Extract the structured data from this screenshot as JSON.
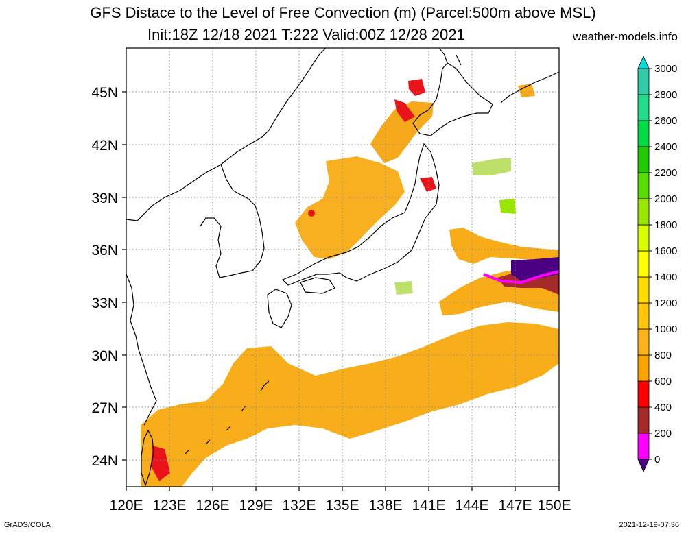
{
  "header": {
    "title": "GFS Distace to the Level of Free Convection (m) (Parcel:500m above MSL)",
    "subtitle": "Init:18Z 12/18 2021 T:222 Valid:00Z 12/28 2021",
    "site": "weather-models.info"
  },
  "footer": {
    "left": "GrADS/COLA",
    "right": "2021-12-19-07:36"
  },
  "map": {
    "lon_range": [
      120,
      150
    ],
    "lat_range": [
      22.5,
      47.5
    ],
    "lon_ticks": [
      "120E",
      "123E",
      "126E",
      "129E",
      "132E",
      "135E",
      "138E",
      "141E",
      "144E",
      "147E",
      "150E"
    ],
    "lat_ticks": [
      "24N",
      "27N",
      "30N",
      "33N",
      "36N",
      "39N",
      "42N",
      "45N"
    ],
    "grid": true
  },
  "colorbar": {
    "labels": [
      "0",
      "200",
      "400",
      "600",
      "800",
      "1000",
      "1200",
      "1400",
      "1600",
      "1800",
      "2000",
      "2200",
      "2400",
      "2600",
      "2800",
      "3000"
    ],
    "colors": [
      "#4b0082",
      "#ff00ff",
      "#a52a2a",
      "#ff0000",
      "#ffa500",
      "#ffb31a",
      "#ffc60d",
      "#ffdc00",
      "#ffff00",
      "#d8ff00",
      "#99e600",
      "#55dd00",
      "#22cc00",
      "#00dd44",
      "#22dd88",
      "#33ccaa",
      "#00dddd"
    ]
  }
}
